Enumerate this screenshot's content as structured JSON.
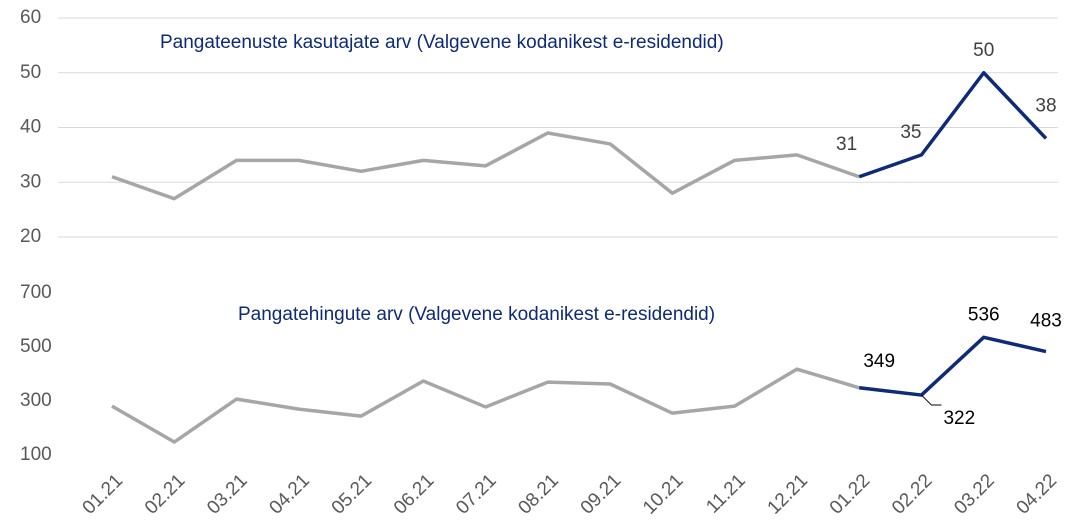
{
  "chart_data": [
    {
      "type": "line",
      "title": "Pangateenuste kasutajate arv (Valgevene kodanikest e-residendid)",
      "categories": [
        "01.21",
        "02.21",
        "03.21",
        "04.21",
        "05.21",
        "06.21",
        "07.21",
        "08.21",
        "09.21",
        "10.21",
        "11.21",
        "12.21",
        "01.22",
        "02.22",
        "03.22",
        "04.22"
      ],
      "series": [
        {
          "color": "#a6a6a6",
          "values": [
            31,
            27,
            34,
            34,
            32,
            34,
            33,
            39,
            37,
            28,
            34,
            35,
            31,
            null,
            null,
            null
          ]
        },
        {
          "color": "#0e2a78",
          "values": [
            null,
            null,
            null,
            null,
            null,
            null,
            null,
            null,
            null,
            null,
            null,
            null,
            31,
            35,
            50,
            38
          ]
        }
      ],
      "ylim": [
        20,
        60
      ],
      "yticks": [
        20,
        30,
        40,
        50,
        60
      ],
      "grid": true
    },
    {
      "type": "line",
      "title": "Pangatehingute arv (Valgevene kodanikest e-residendid)",
      "series": [
        {
          "color": "#a6a6a6",
          "values": [
            281,
            148,
            307,
            270,
            244,
            374,
            278,
            370,
            363,
            255,
            281,
            418,
            349,
            null,
            null,
            null
          ]
        },
        {
          "color": "#0e2a78",
          "values": [
            null,
            null,
            null,
            null,
            null,
            null,
            null,
            null,
            null,
            null,
            null,
            null,
            349,
            322,
            536,
            483
          ]
        }
      ],
      "ylim": [
        100,
        700
      ],
      "yticks": [
        100,
        300,
        500,
        700
      ],
      "grid": false
    }
  ]
}
